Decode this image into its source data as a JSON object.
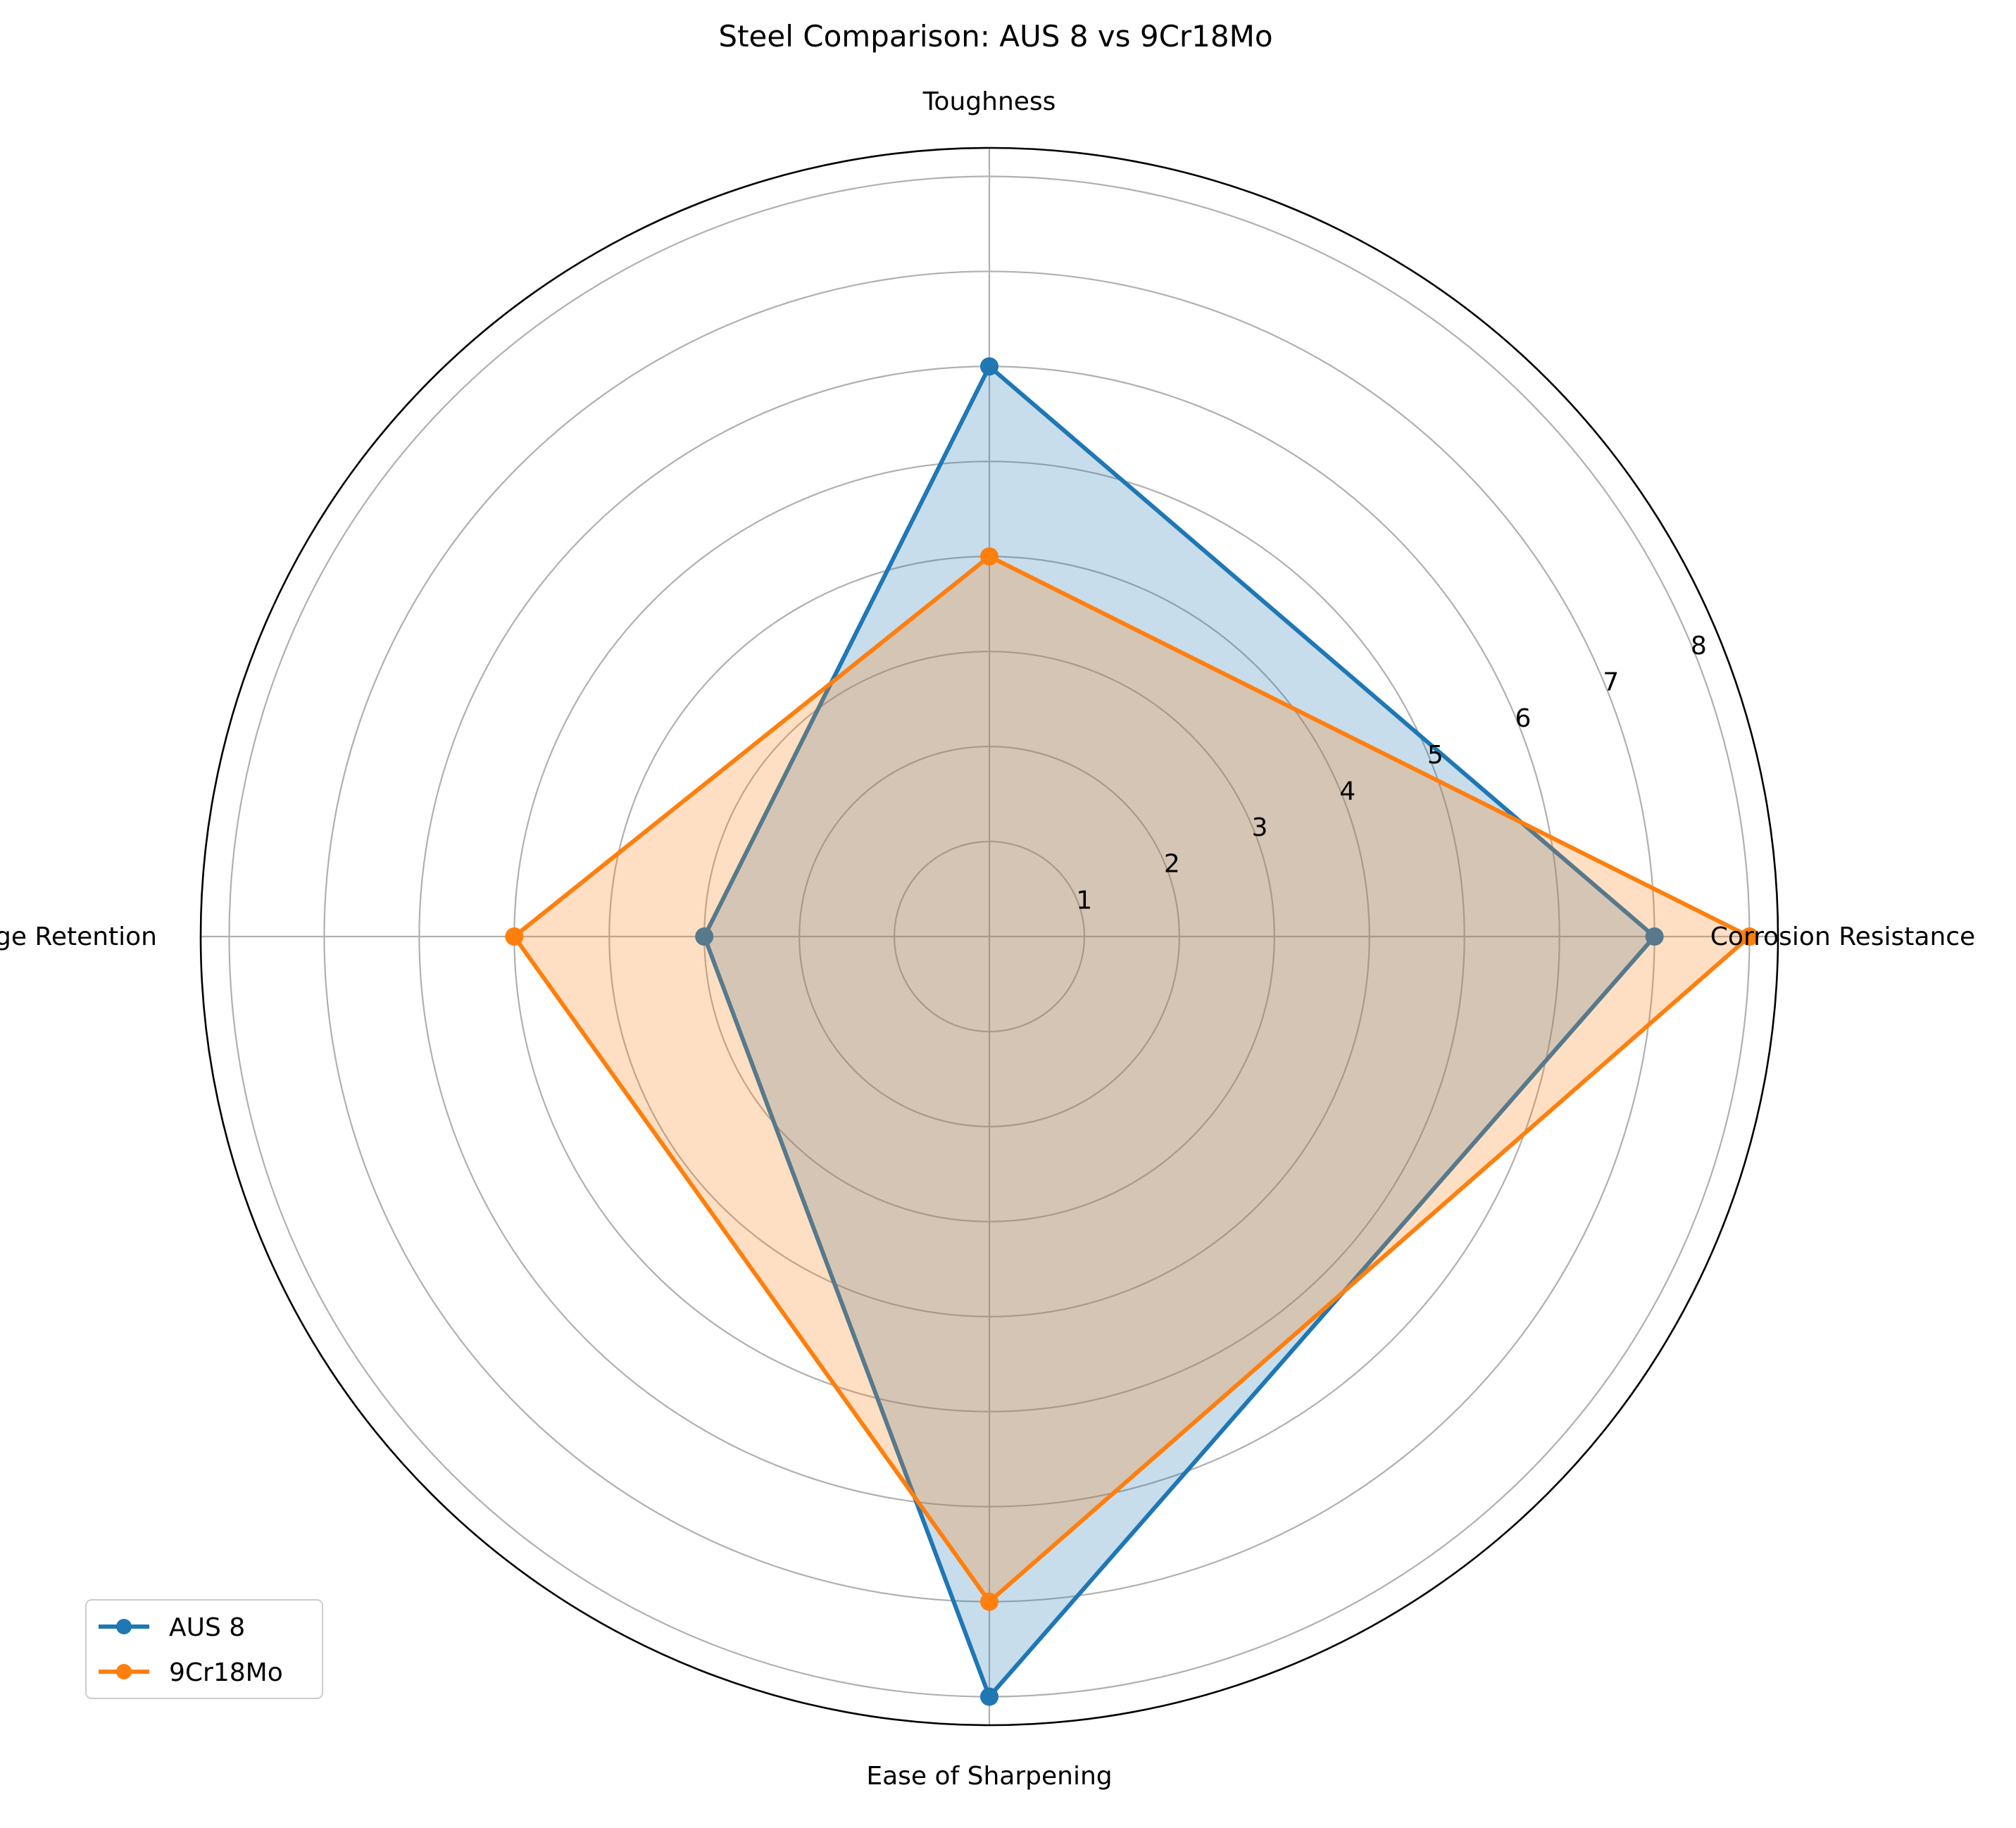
{
  "chart_data": {
    "type": "radar",
    "title": "Steel Comparison: AUS 8 vs 9Cr18Mo",
    "categories": [
      "Corrosion Resistance",
      "Toughness",
      "Edge Retention",
      "Ease of Sharpening"
    ],
    "series": [
      {
        "name": "AUS 8",
        "values": [
          7,
          6,
          3,
          8
        ],
        "color": "#1f77b4"
      },
      {
        "name": "9Cr18Mo",
        "values": [
          8,
          4,
          5,
          7
        ],
        "color": "#ff7f0e"
      }
    ],
    "rlim": [
      0,
      8.3
    ],
    "r_ticks": [
      "1",
      "2",
      "3",
      "4",
      "5",
      "6",
      "7",
      "8"
    ],
    "grid": true,
    "legend_position": "lower-left"
  }
}
